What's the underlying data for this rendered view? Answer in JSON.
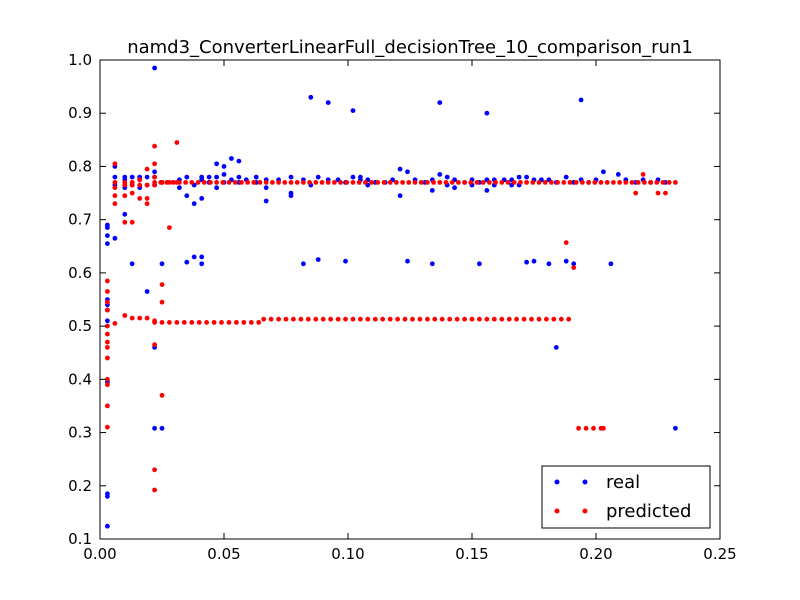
{
  "chart_data": {
    "type": "scatter",
    "title": "namd3_ConverterLinearFull_decisionTree_10_comparison_run1",
    "xlabel": "",
    "ylabel": "",
    "xlim": [
      0.0,
      0.25
    ],
    "ylim": [
      0.1,
      1.0
    ],
    "xticks": [
      "0.00",
      "0.05",
      "0.10",
      "0.15",
      "0.20",
      "0.25"
    ],
    "yticks": [
      "0.1",
      "0.2",
      "0.3",
      "0.4",
      "0.5",
      "0.6",
      "0.7",
      "0.8",
      "0.9",
      "1.0"
    ],
    "grid": false,
    "legend_position": "lower-right",
    "series": [
      {
        "name": "real",
        "color": "#0000ff",
        "points": [
          [
            0.003,
            0.124
          ],
          [
            0.003,
            0.18
          ],
          [
            0.003,
            0.185
          ],
          [
            0.003,
            0.395
          ],
          [
            0.003,
            0.51
          ],
          [
            0.003,
            0.53
          ],
          [
            0.003,
            0.54
          ],
          [
            0.003,
            0.55
          ],
          [
            0.003,
            0.655
          ],
          [
            0.003,
            0.67
          ],
          [
            0.003,
            0.685
          ],
          [
            0.003,
            0.69
          ],
          [
            0.006,
            0.665
          ],
          [
            0.006,
            0.765
          ],
          [
            0.006,
            0.78
          ],
          [
            0.006,
            0.8
          ],
          [
            0.01,
            0.71
          ],
          [
            0.01,
            0.76
          ],
          [
            0.01,
            0.775
          ],
          [
            0.01,
            0.78
          ],
          [
            0.013,
            0.617
          ],
          [
            0.013,
            0.765
          ],
          [
            0.013,
            0.78
          ],
          [
            0.016,
            0.76
          ],
          [
            0.016,
            0.775
          ],
          [
            0.016,
            0.78
          ],
          [
            0.019,
            0.565
          ],
          [
            0.019,
            0.765
          ],
          [
            0.019,
            0.78
          ],
          [
            0.022,
            0.308
          ],
          [
            0.022,
            0.46
          ],
          [
            0.022,
            0.765
          ],
          [
            0.022,
            0.78
          ],
          [
            0.022,
            0.79
          ],
          [
            0.022,
            0.985
          ],
          [
            0.025,
            0.308
          ],
          [
            0.025,
            0.617
          ],
          [
            0.025,
            0.77
          ],
          [
            0.032,
            0.76
          ],
          [
            0.032,
            0.775
          ],
          [
            0.035,
            0.62
          ],
          [
            0.035,
            0.745
          ],
          [
            0.035,
            0.78
          ],
          [
            0.038,
            0.63
          ],
          [
            0.038,
            0.73
          ],
          [
            0.038,
            0.765
          ],
          [
            0.041,
            0.617
          ],
          [
            0.041,
            0.63
          ],
          [
            0.041,
            0.74
          ],
          [
            0.041,
            0.775
          ],
          [
            0.041,
            0.78
          ],
          [
            0.044,
            0.77
          ],
          [
            0.044,
            0.78
          ],
          [
            0.047,
            0.76
          ],
          [
            0.047,
            0.78
          ],
          [
            0.047,
            0.805
          ],
          [
            0.05,
            0.77
          ],
          [
            0.05,
            0.785
          ],
          [
            0.05,
            0.8
          ],
          [
            0.053,
            0.775
          ],
          [
            0.053,
            0.815
          ],
          [
            0.056,
            0.77
          ],
          [
            0.056,
            0.81
          ],
          [
            0.056,
            0.78
          ],
          [
            0.059,
            0.775
          ],
          [
            0.063,
            0.77
          ],
          [
            0.063,
            0.78
          ],
          [
            0.067,
            0.735
          ],
          [
            0.067,
            0.76
          ],
          [
            0.067,
            0.775
          ],
          [
            0.072,
            0.775
          ],
          [
            0.077,
            0.745
          ],
          [
            0.077,
            0.75
          ],
          [
            0.077,
            0.78
          ],
          [
            0.082,
            0.617
          ],
          [
            0.082,
            0.775
          ],
          [
            0.085,
            0.765
          ],
          [
            0.085,
            0.93
          ],
          [
            0.088,
            0.625
          ],
          [
            0.088,
            0.78
          ],
          [
            0.092,
            0.775
          ],
          [
            0.092,
            0.92
          ],
          [
            0.096,
            0.775
          ],
          [
            0.099,
            0.622
          ],
          [
            0.099,
            0.77
          ],
          [
            0.102,
            0.78
          ],
          [
            0.102,
            0.905
          ],
          [
            0.105,
            0.775
          ],
          [
            0.105,
            0.78
          ],
          [
            0.108,
            0.765
          ],
          [
            0.108,
            0.775
          ],
          [
            0.111,
            0.77
          ],
          [
            0.115,
            0.77
          ],
          [
            0.118,
            0.775
          ],
          [
            0.121,
            0.745
          ],
          [
            0.121,
            0.795
          ],
          [
            0.124,
            0.622
          ],
          [
            0.124,
            0.79
          ],
          [
            0.127,
            0.775
          ],
          [
            0.131,
            0.77
          ],
          [
            0.134,
            0.617
          ],
          [
            0.134,
            0.755
          ],
          [
            0.134,
            0.775
          ],
          [
            0.137,
            0.785
          ],
          [
            0.137,
            0.92
          ],
          [
            0.14,
            0.765
          ],
          [
            0.14,
            0.78
          ],
          [
            0.143,
            0.76
          ],
          [
            0.143,
            0.775
          ],
          [
            0.147,
            0.77
          ],
          [
            0.15,
            0.765
          ],
          [
            0.15,
            0.775
          ],
          [
            0.153,
            0.617
          ],
          [
            0.153,
            0.77
          ],
          [
            0.156,
            0.755
          ],
          [
            0.156,
            0.775
          ],
          [
            0.156,
            0.9
          ],
          [
            0.159,
            0.765
          ],
          [
            0.159,
            0.775
          ],
          [
            0.163,
            0.775
          ],
          [
            0.166,
            0.765
          ],
          [
            0.166,
            0.775
          ],
          [
            0.169,
            0.765
          ],
          [
            0.169,
            0.78
          ],
          [
            0.172,
            0.62
          ],
          [
            0.172,
            0.78
          ],
          [
            0.175,
            0.622
          ],
          [
            0.175,
            0.775
          ],
          [
            0.178,
            0.775
          ],
          [
            0.181,
            0.617
          ],
          [
            0.181,
            0.775
          ],
          [
            0.184,
            0.46
          ],
          [
            0.184,
            0.77
          ],
          [
            0.188,
            0.622
          ],
          [
            0.188,
            0.78
          ],
          [
            0.191,
            0.617
          ],
          [
            0.191,
            0.77
          ],
          [
            0.194,
            0.775
          ],
          [
            0.194,
            0.925
          ],
          [
            0.197,
            0.77
          ],
          [
            0.2,
            0.775
          ],
          [
            0.203,
            0.79
          ],
          [
            0.206,
            0.617
          ],
          [
            0.209,
            0.785
          ],
          [
            0.212,
            0.775
          ],
          [
            0.216,
            0.77
          ],
          [
            0.219,
            0.775
          ],
          [
            0.222,
            0.77
          ],
          [
            0.225,
            0.775
          ],
          [
            0.228,
            0.77
          ],
          [
            0.232,
            0.308
          ]
        ]
      },
      {
        "name": "predicted",
        "color": "#ff0000",
        "points": [
          [
            0.003,
            0.31
          ],
          [
            0.003,
            0.35
          ],
          [
            0.003,
            0.39
          ],
          [
            0.003,
            0.4
          ],
          [
            0.003,
            0.44
          ],
          [
            0.003,
            0.46
          ],
          [
            0.003,
            0.47
          ],
          [
            0.003,
            0.485
          ],
          [
            0.003,
            0.5
          ],
          [
            0.003,
            0.53
          ],
          [
            0.003,
            0.545
          ],
          [
            0.003,
            0.565
          ],
          [
            0.003,
            0.585
          ],
          [
            0.006,
            0.505
          ],
          [
            0.006,
            0.73
          ],
          [
            0.006,
            0.745
          ],
          [
            0.006,
            0.76
          ],
          [
            0.006,
            0.77
          ],
          [
            0.006,
            0.805
          ],
          [
            0.01,
            0.52
          ],
          [
            0.01,
            0.695
          ],
          [
            0.01,
            0.745
          ],
          [
            0.01,
            0.765
          ],
          [
            0.01,
            0.77
          ],
          [
            0.013,
            0.515
          ],
          [
            0.013,
            0.695
          ],
          [
            0.013,
            0.75
          ],
          [
            0.013,
            0.765
          ],
          [
            0.013,
            0.77
          ],
          [
            0.016,
            0.515
          ],
          [
            0.016,
            0.74
          ],
          [
            0.016,
            0.765
          ],
          [
            0.016,
            0.775
          ],
          [
            0.019,
            0.515
          ],
          [
            0.019,
            0.73
          ],
          [
            0.019,
            0.74
          ],
          [
            0.019,
            0.765
          ],
          [
            0.019,
            0.795
          ],
          [
            0.022,
            0.192
          ],
          [
            0.022,
            0.23
          ],
          [
            0.022,
            0.465
          ],
          [
            0.022,
            0.51
          ],
          [
            0.022,
            0.765
          ],
          [
            0.022,
            0.78
          ],
          [
            0.022,
            0.805
          ],
          [
            0.022,
            0.838
          ],
          [
            0.025,
            0.37
          ],
          [
            0.025,
            0.545
          ],
          [
            0.025,
            0.578
          ],
          [
            0.025,
            0.77
          ],
          [
            0.028,
            0.685
          ],
          [
            0.028,
            0.77
          ],
          [
            0.031,
            0.845
          ],
          [
            0.031,
            0.77
          ],
          [
            0.188,
            0.657
          ],
          [
            0.191,
            0.61
          ],
          [
            0.193,
            0.308
          ],
          [
            0.196,
            0.308
          ],
          [
            0.199,
            0.308
          ],
          [
            0.202,
            0.308
          ],
          [
            0.203,
            0.308
          ],
          [
            0.216,
            0.75
          ],
          [
            0.219,
            0.785
          ],
          [
            0.225,
            0.75
          ],
          [
            0.228,
            0.75
          ]
        ],
        "plateau_lines": [
          {
            "y": 0.507,
            "x_start": 0.022,
            "x_end": 0.064,
            "step": 0.003
          },
          {
            "y": 0.513,
            "x_start": 0.066,
            "x_end": 0.191,
            "step": 0.003
          },
          {
            "y": 0.77,
            "x_start": 0.022,
            "x_end": 0.232,
            "step": 0.0025
          }
        ]
      }
    ]
  }
}
